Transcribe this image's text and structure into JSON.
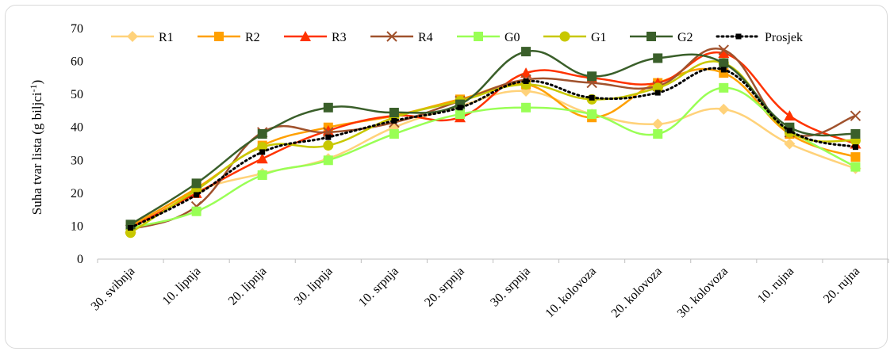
{
  "chart_data": {
    "type": "line",
    "ylabel": "Suha tvar lista (g biljci⁻¹)",
    "ylim": [
      0,
      70
    ],
    "yticks": [
      "0",
      "10",
      "20",
      "30",
      "40",
      "50",
      "60",
      "70"
    ],
    "grid": false,
    "legend": "top",
    "categories": [
      "30. svibnja",
      "10. lipnja",
      "20. lipnja",
      "30. lipnja",
      "10. srpnja",
      "20. srpnja",
      "30. srpnja",
      "10. kolovoza",
      "20. kolovoza",
      "30. kolovoza",
      "10. rujna",
      "20. rujna"
    ],
    "series": [
      {
        "name": "R1",
        "color": "#ffd27a",
        "marker": "diamond",
        "values": [
          9,
          20.5,
          26,
          30.5,
          40,
          46.5,
          51,
          44,
          41,
          45.5,
          35,
          27.5
        ]
      },
      {
        "name": "R2",
        "color": "#ffa000",
        "marker": "square",
        "values": [
          10,
          21.5,
          34.5,
          40,
          43.5,
          48.5,
          53,
          43,
          53.5,
          56.5,
          38,
          31
        ]
      },
      {
        "name": "R3",
        "color": "#ff3300",
        "marker": "triangle",
        "values": [
          9.5,
          20,
          30.5,
          39,
          43.5,
          43,
          56.5,
          55,
          53.5,
          62.5,
          43.5,
          35
        ]
      },
      {
        "name": "R4",
        "color": "#a0522d",
        "marker": "x",
        "values": [
          9,
          16,
          38.5,
          38.5,
          41.5,
          48,
          54.5,
          53.5,
          52.5,
          63.5,
          38.5,
          43.5
        ]
      },
      {
        "name": "G0",
        "color": "#99ff55",
        "marker": "square",
        "values": [
          9.5,
          14.5,
          25.5,
          30,
          38,
          44,
          46,
          44,
          38,
          52,
          39,
          28
        ]
      },
      {
        "name": "G1",
        "color": "#c8c800",
        "marker": "circle",
        "values": [
          8,
          21,
          34,
          34.5,
          43,
          48,
          53,
          48.5,
          52,
          59.5,
          38.5,
          36
        ]
      },
      {
        "name": "G2",
        "color": "#3a5f2a",
        "marker": "square",
        "values": [
          10.5,
          23,
          38,
          46,
          44.5,
          47,
          63,
          55.5,
          61,
          59.5,
          40,
          38
        ]
      },
      {
        "name": "Prosjek",
        "color": "#000000",
        "marker": "dot",
        "dashed": true,
        "values": [
          9.5,
          19.5,
          32.5,
          37,
          42,
          46,
          54,
          49,
          50.5,
          57.5,
          39,
          34
        ]
      }
    ]
  }
}
